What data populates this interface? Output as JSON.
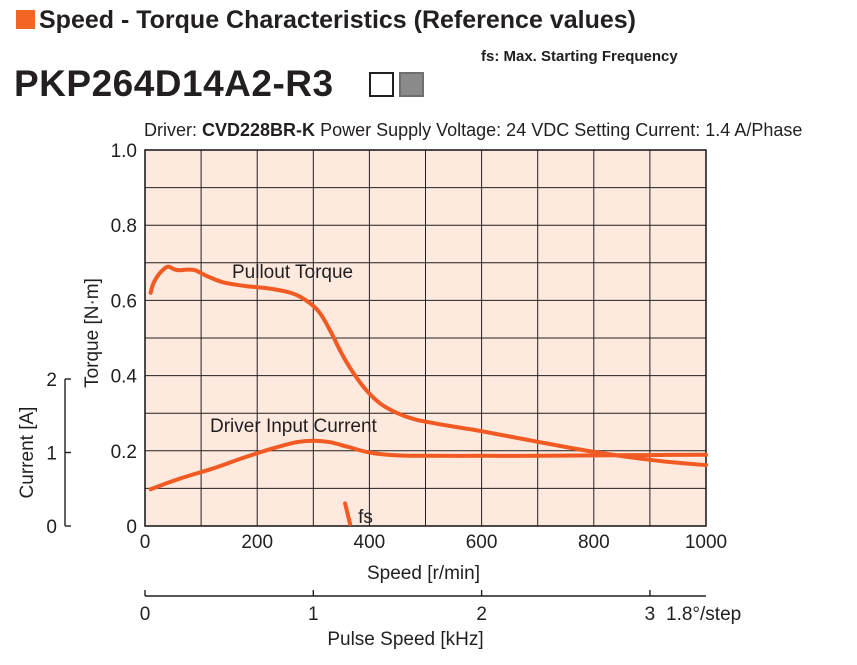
{
  "header": {
    "title": "Speed - Torque Characteristics (Reference values)",
    "fs_note": "fs: Max. Starting Frequency",
    "model": "PKP264D14A2-R3"
  },
  "conditions": {
    "driver_label": "Driver:",
    "driver_model": "CVD228BR-K",
    "supply": "Power Supply Voltage: 24 VDC",
    "current": "Setting Current: 1.4 A/Phase"
  },
  "colors": {
    "plot_bg": "#fde9dd",
    "curve": "#f15a22",
    "accent": "#f26522",
    "grid": "#231f20"
  },
  "chart_data": {
    "type": "line",
    "x": {
      "label": "Speed [r/min]",
      "range": [
        0,
        1000
      ],
      "ticks": [
        "0",
        "200",
        "400",
        "600",
        "800",
        "1000"
      ]
    },
    "y_torque": {
      "label": "Torque [N·m]",
      "range": [
        0,
        1.0
      ],
      "ticks": [
        "0",
        "0.2",
        "0.4",
        "0.6",
        "0.8",
        "1.0"
      ]
    },
    "y_current": {
      "label": "Current [A]",
      "range": [
        0,
        2
      ],
      "ticks": [
        "0",
        "1",
        "2"
      ]
    },
    "x_pulse": {
      "label": "Pulse Speed [kHz]",
      "range": [
        0,
        3.333
      ],
      "ticks": [
        "0",
        "1",
        "2",
        "3"
      ],
      "step_note": "1.8°/step"
    },
    "grid": true,
    "series": [
      {
        "name": "Pullout Torque",
        "axis": "torque",
        "points": [
          [
            10,
            0.62
          ],
          [
            15,
            0.645
          ],
          [
            25,
            0.67
          ],
          [
            35,
            0.685
          ],
          [
            42,
            0.69
          ],
          [
            50,
            0.684
          ],
          [
            60,
            0.68
          ],
          [
            75,
            0.682
          ],
          [
            90,
            0.68
          ],
          [
            110,
            0.665
          ],
          [
            140,
            0.648
          ],
          [
            180,
            0.638
          ],
          [
            220,
            0.632
          ],
          [
            260,
            0.62
          ],
          [
            285,
            0.602
          ],
          [
            310,
            0.57
          ],
          [
            330,
            0.52
          ],
          [
            350,
            0.46
          ],
          [
            370,
            0.41
          ],
          [
            395,
            0.36
          ],
          [
            420,
            0.325
          ],
          [
            450,
            0.3
          ],
          [
            480,
            0.284
          ],
          [
            520,
            0.272
          ],
          [
            560,
            0.262
          ],
          [
            600,
            0.252
          ],
          [
            650,
            0.238
          ],
          [
            700,
            0.224
          ],
          [
            750,
            0.21
          ],
          [
            800,
            0.197
          ],
          [
            850,
            0.186
          ],
          [
            900,
            0.176
          ],
          [
            950,
            0.168
          ],
          [
            1000,
            0.162
          ]
        ]
      },
      {
        "name": "Driver Input Current",
        "axis": "current",
        "points": [
          [
            10,
            0.5
          ],
          [
            60,
            0.64
          ],
          [
            120,
            0.78
          ],
          [
            180,
            0.94
          ],
          [
            230,
            1.06
          ],
          [
            270,
            1.14
          ],
          [
            300,
            1.16
          ],
          [
            330,
            1.14
          ],
          [
            360,
            1.08
          ],
          [
            400,
            1.0
          ],
          [
            450,
            0.96
          ],
          [
            500,
            0.955
          ],
          [
            600,
            0.955
          ],
          [
            700,
            0.955
          ],
          [
            800,
            0.96
          ],
          [
            900,
            0.965
          ],
          [
            1000,
            0.97
          ]
        ]
      }
    ],
    "series_labels": [
      "Pullout Torque",
      "Driver Input Current"
    ],
    "fs": {
      "label": "fs",
      "speed": 362,
      "torque_top": 0.06
    }
  }
}
